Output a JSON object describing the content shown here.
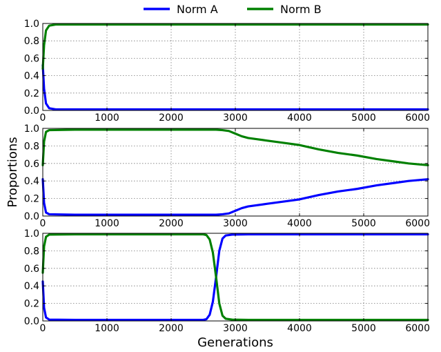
{
  "chart_data": {
    "type": "line",
    "xlabel": "Generations",
    "ylabel": "Proportions",
    "legend": {
      "placement": "top-center",
      "entries": [
        {
          "name": "Norm A",
          "color": "#0000ff"
        },
        {
          "name": "Norm B",
          "color": "#008000"
        }
      ]
    },
    "grid": true,
    "xlim": [
      0,
      6000
    ],
    "ylim": [
      0,
      1
    ],
    "xticks": [
      "0",
      "1000",
      "2000",
      "3000",
      "4000",
      "5000",
      "6000"
    ],
    "yticks": [
      "0.0",
      "0.2",
      "0.4",
      "0.6",
      "0.8",
      "1.0"
    ],
    "panels": [
      {
        "series": [
          {
            "name": "Norm A",
            "color": "#0000ff",
            "points": [
              [
                0,
                0.52
              ],
              [
                20,
                0.25
              ],
              [
                50,
                0.08
              ],
              [
                100,
                0.025
              ],
              [
                200,
                0.012
              ],
              [
                500,
                0.012
              ],
              [
                6000,
                0.012
              ]
            ]
          },
          {
            "name": "Norm B",
            "color": "#008000",
            "points": [
              [
                0,
                0.48
              ],
              [
                20,
                0.75
              ],
              [
                50,
                0.92
              ],
              [
                100,
                0.975
              ],
              [
                200,
                0.988
              ],
              [
                500,
                0.988
              ],
              [
                6000,
                0.988
              ]
            ]
          }
        ]
      },
      {
        "series": [
          {
            "name": "Norm A",
            "color": "#0000ff",
            "points": [
              [
                0,
                0.42
              ],
              [
                20,
                0.15
              ],
              [
                50,
                0.04
              ],
              [
                100,
                0.02
              ],
              [
                500,
                0.015
              ],
              [
                2700,
                0.015
              ],
              [
                2800,
                0.02
              ],
              [
                2900,
                0.03
              ],
              [
                3000,
                0.06
              ],
              [
                3100,
                0.09
              ],
              [
                3200,
                0.11
              ],
              [
                3500,
                0.14
              ],
              [
                3800,
                0.17
              ],
              [
                4000,
                0.19
              ],
              [
                4300,
                0.24
              ],
              [
                4600,
                0.28
              ],
              [
                4900,
                0.31
              ],
              [
                5200,
                0.35
              ],
              [
                5500,
                0.38
              ],
              [
                5700,
                0.4
              ],
              [
                6000,
                0.42
              ]
            ]
          },
          {
            "name": "Norm B",
            "color": "#008000",
            "points": [
              [
                0,
                0.58
              ],
              [
                20,
                0.85
              ],
              [
                50,
                0.96
              ],
              [
                100,
                0.98
              ],
              [
                500,
                0.985
              ],
              [
                2700,
                0.985
              ],
              [
                2800,
                0.98
              ],
              [
                2900,
                0.97
              ],
              [
                3000,
                0.94
              ],
              [
                3100,
                0.91
              ],
              [
                3200,
                0.89
              ],
              [
                3500,
                0.86
              ],
              [
                3800,
                0.83
              ],
              [
                4000,
                0.81
              ],
              [
                4300,
                0.76
              ],
              [
                4600,
                0.72
              ],
              [
                4900,
                0.69
              ],
              [
                5200,
                0.65
              ],
              [
                5500,
                0.62
              ],
              [
                5700,
                0.6
              ],
              [
                6000,
                0.58
              ]
            ]
          }
        ]
      },
      {
        "series": [
          {
            "name": "Norm A",
            "color": "#0000ff",
            "points": [
              [
                0,
                0.45
              ],
              [
                20,
                0.15
              ],
              [
                50,
                0.04
              ],
              [
                100,
                0.015
              ],
              [
                500,
                0.012
              ],
              [
                2500,
                0.012
              ],
              [
                2550,
                0.02
              ],
              [
                2600,
                0.07
              ],
              [
                2650,
                0.22
              ],
              [
                2700,
                0.5
              ],
              [
                2750,
                0.8
              ],
              [
                2800,
                0.94
              ],
              [
                2850,
                0.975
              ],
              [
                2950,
                0.985
              ],
              [
                3200,
                0.988
              ],
              [
                6000,
                0.988
              ]
            ]
          },
          {
            "name": "Norm B",
            "color": "#008000",
            "points": [
              [
                0,
                0.55
              ],
              [
                20,
                0.85
              ],
              [
                50,
                0.96
              ],
              [
                100,
                0.985
              ],
              [
                500,
                0.988
              ],
              [
                2500,
                0.988
              ],
              [
                2550,
                0.98
              ],
              [
                2600,
                0.93
              ],
              [
                2650,
                0.78
              ],
              [
                2700,
                0.5
              ],
              [
                2750,
                0.2
              ],
              [
                2800,
                0.06
              ],
              [
                2850,
                0.025
              ],
              [
                2950,
                0.015
              ],
              [
                3200,
                0.012
              ],
              [
                6000,
                0.012
              ]
            ]
          }
        ]
      }
    ]
  }
}
